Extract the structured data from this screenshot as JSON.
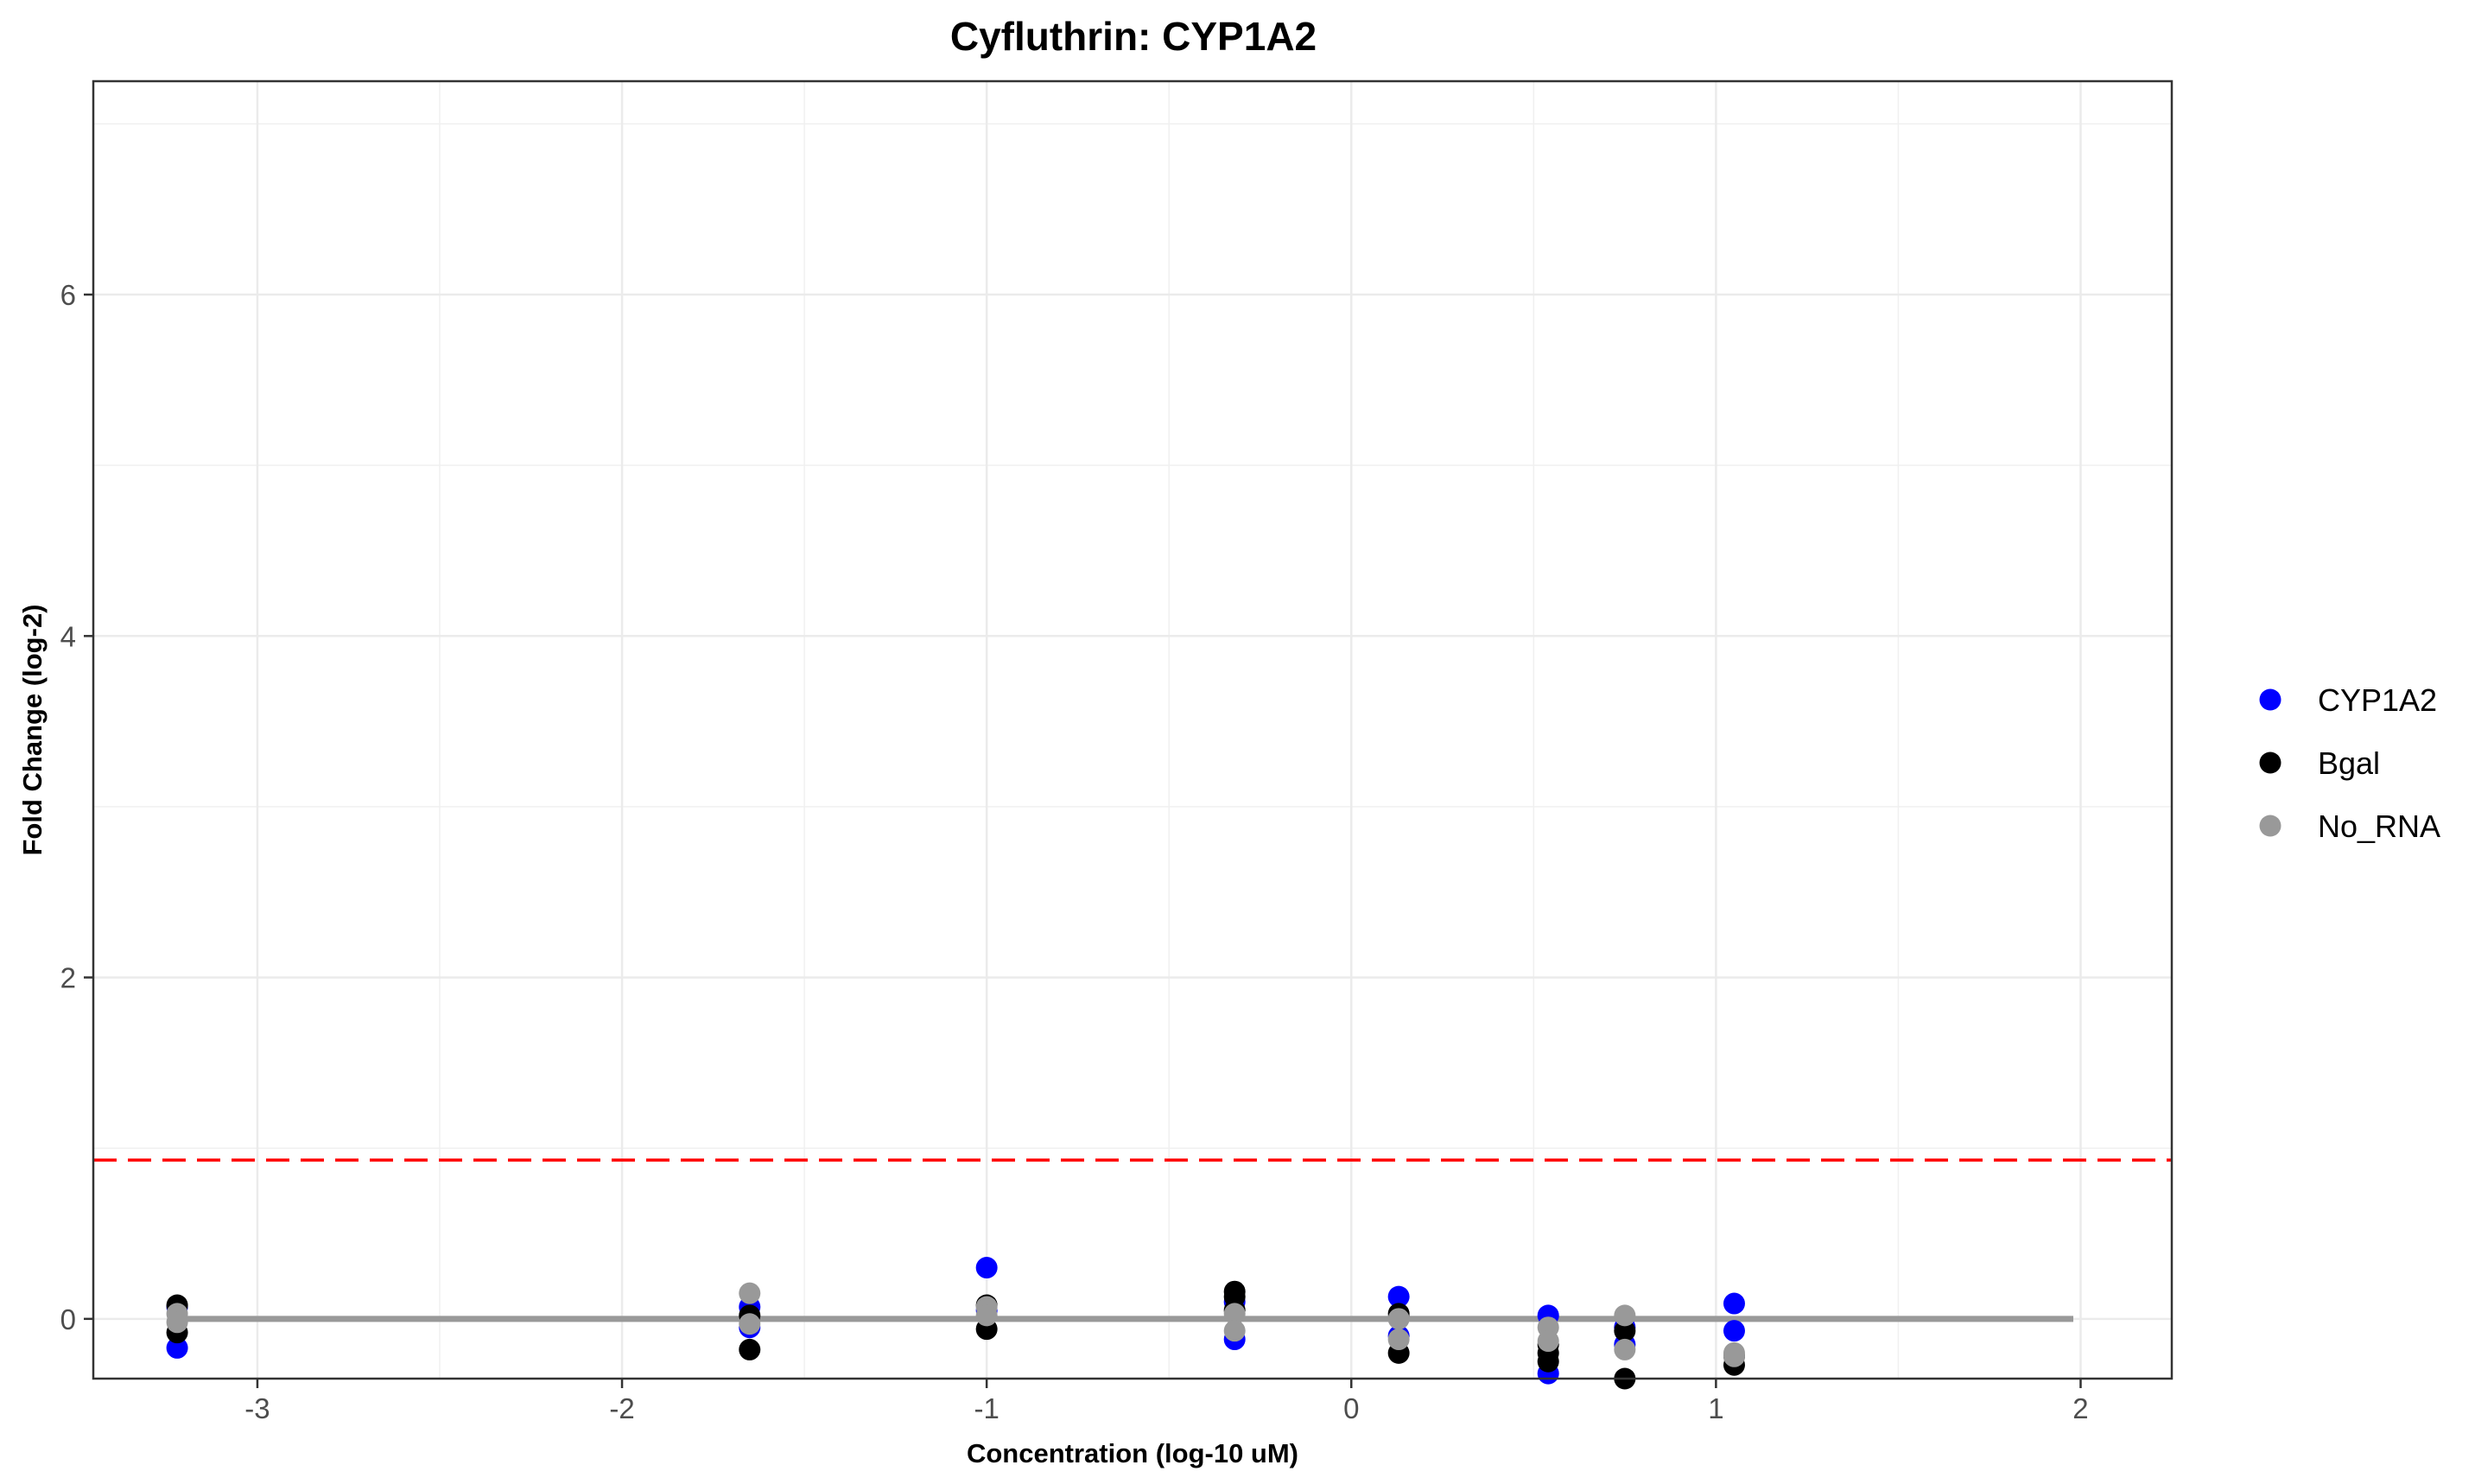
{
  "chart_data": {
    "type": "scatter",
    "title": "Cyfluthrin: CYP1A2",
    "xlabel": "Concentration (log-10 uM)",
    "ylabel": "Fold Change (log-2)",
    "xlim": [
      -3.45,
      2.25
    ],
    "ylim": [
      -0.35,
      7.25
    ],
    "x_ticks": [
      -3,
      -2,
      -1,
      0,
      1,
      2
    ],
    "x_tick_labels": [
      "-3",
      "-2",
      "-1",
      "0",
      "1",
      "2"
    ],
    "y_ticks": [
      0,
      2,
      4,
      6
    ],
    "y_tick_labels": [
      "0",
      "2",
      "4",
      "6"
    ],
    "grid": true,
    "legend_position": "right",
    "threshold_line": {
      "y": 0.93,
      "color": "#ff0000",
      "style": "dashed"
    },
    "fit_line": {
      "x": [
        -3.22,
        1.98
      ],
      "y": [
        0,
        0
      ],
      "color": "#999999"
    },
    "series": [
      {
        "name": "CYP1A2",
        "color": "#0000ff",
        "points": [
          [
            -3.22,
            -0.17
          ],
          [
            -3.22,
            0.07
          ],
          [
            -1.65,
            0.07
          ],
          [
            -1.65,
            -0.05
          ],
          [
            -1.0,
            0.3
          ],
          [
            -1.0,
            0.05
          ],
          [
            -0.32,
            -0.12
          ],
          [
            -0.32,
            0.1
          ],
          [
            0.13,
            0.13
          ],
          [
            0.13,
            -0.1
          ],
          [
            0.54,
            0.02
          ],
          [
            0.54,
            -0.32
          ],
          [
            0.75,
            -0.15
          ],
          [
            0.75,
            -0.05
          ],
          [
            1.05,
            0.09
          ],
          [
            1.05,
            -0.07
          ]
        ]
      },
      {
        "name": "Bgal",
        "color": "#000000",
        "points": [
          [
            -3.22,
            0.08
          ],
          [
            -3.22,
            -0.08
          ],
          [
            -1.65,
            -0.18
          ],
          [
            -1.65,
            0.02
          ],
          [
            -1.0,
            -0.06
          ],
          [
            -1.0,
            0.08
          ],
          [
            -0.32,
            0.16
          ],
          [
            -0.32,
            0.13
          ],
          [
            -0.32,
            0.05
          ],
          [
            0.13,
            0.03
          ],
          [
            0.13,
            -0.2
          ],
          [
            0.54,
            -0.2
          ],
          [
            0.54,
            -0.25
          ],
          [
            0.54,
            -0.15
          ],
          [
            0.75,
            -0.35
          ],
          [
            0.75,
            -0.07
          ],
          [
            1.05,
            -0.27
          ],
          [
            1.05,
            -0.22
          ]
        ]
      },
      {
        "name": "No_RNA",
        "color": "#999999",
        "points": [
          [
            -3.22,
            0.03
          ],
          [
            -3.22,
            -0.02
          ],
          [
            -1.65,
            0.15
          ],
          [
            -1.65,
            -0.03
          ],
          [
            -1.0,
            0.07
          ],
          [
            -1.0,
            0.02
          ],
          [
            -0.32,
            0.03
          ],
          [
            -0.32,
            -0.07
          ],
          [
            0.13,
            0.0
          ],
          [
            0.13,
            -0.12
          ],
          [
            0.54,
            -0.05
          ],
          [
            0.54,
            -0.13
          ],
          [
            0.75,
            0.02
          ],
          [
            0.75,
            -0.18
          ],
          [
            1.05,
            -0.22
          ],
          [
            1.05,
            -0.2
          ]
        ]
      }
    ]
  }
}
